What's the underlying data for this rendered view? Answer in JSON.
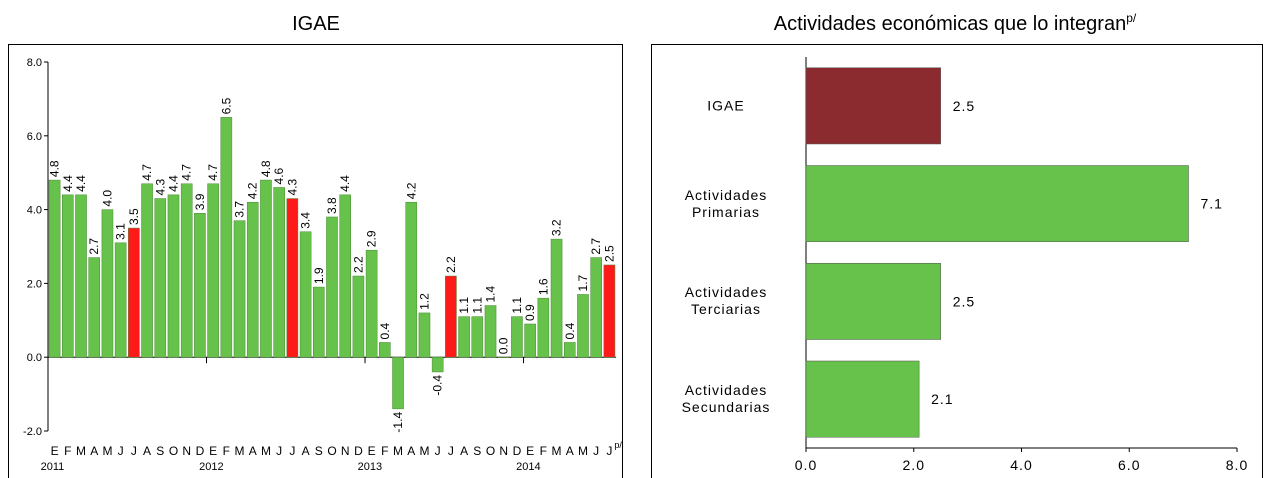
{
  "chart_data": [
    {
      "type": "bar",
      "title": "IGAE",
      "categories": [
        "E",
        "F",
        "M",
        "A",
        "M",
        "J",
        "J",
        "A",
        "S",
        "O",
        "N",
        "D",
        "E",
        "F",
        "M",
        "A",
        "M",
        "J",
        "J",
        "A",
        "S",
        "O",
        "N",
        "D",
        "E",
        "F",
        "M",
        "A",
        "M",
        "J",
        "J",
        "A",
        "S",
        "O",
        "N",
        "D",
        "E",
        "F",
        "M",
        "A",
        "M",
        "J",
        "J"
      ],
      "category_note": "p/",
      "years": [
        "2011",
        "2012",
        "2013",
        "2014"
      ],
      "values": [
        4.8,
        4.4,
        4.4,
        2.7,
        4.0,
        3.1,
        3.5,
        4.7,
        4.3,
        4.4,
        4.7,
        3.9,
        4.7,
        6.5,
        3.7,
        4.2,
        4.8,
        4.6,
        4.3,
        3.4,
        1.9,
        3.8,
        4.4,
        2.2,
        2.9,
        0.4,
        -1.4,
        4.2,
        1.2,
        -0.4,
        2.2,
        1.1,
        1.1,
        1.4,
        0.0,
        1.1,
        0.9,
        1.6,
        3.2,
        0.4,
        1.7,
        2.7,
        2.5
      ],
      "value_labels": [
        "4.8",
        "4.4",
        "4.4",
        "2.7",
        "4.0",
        "3.1",
        "3.5",
        "4.7",
        "4.3",
        "4.4",
        "4.7",
        "3.9",
        "4.7",
        "6.5",
        "3.7",
        "4.2",
        "4.8",
        "4.6",
        "4.3",
        "3.4",
        "1.9",
        "3.8",
        "4.4",
        "2.2",
        "2.9",
        "0.4",
        "-1.4",
        "4.2",
        "1.2",
        "-0.4",
        "2.2",
        "1.1",
        "1.1",
        "1.4",
        "0.0",
        "1.1",
        "0.9",
        "1.6",
        "3.2",
        "0.4",
        "1.7",
        "2.7",
        "2.5"
      ],
      "colors": [
        "#66c24a",
        "#66c24a",
        "#66c24a",
        "#66c24a",
        "#66c24a",
        "#66c24a",
        "#ff1a1a",
        "#66c24a",
        "#66c24a",
        "#66c24a",
        "#66c24a",
        "#66c24a",
        "#66c24a",
        "#66c24a",
        "#66c24a",
        "#66c24a",
        "#66c24a",
        "#66c24a",
        "#ff1a1a",
        "#66c24a",
        "#66c24a",
        "#66c24a",
        "#66c24a",
        "#66c24a",
        "#66c24a",
        "#66c24a",
        "#66c24a",
        "#66c24a",
        "#66c24a",
        "#66c24a",
        "#ff1a1a",
        "#66c24a",
        "#66c24a",
        "#66c24a",
        "#66c24a",
        "#66c24a",
        "#66c24a",
        "#66c24a",
        "#66c24a",
        "#66c24a",
        "#66c24a",
        "#66c24a",
        "#ff1a1a"
      ],
      "ylim": [
        -2,
        8
      ],
      "yticks": [
        {
          "value": -2,
          "label": "-2.0"
        },
        {
          "value": 0,
          "label": "0.0"
        },
        {
          "value": 2,
          "label": "2.0"
        },
        {
          "value": 4,
          "label": "4.0"
        },
        {
          "value": 6,
          "label": "6.0"
        },
        {
          "value": 8,
          "label": "8.0"
        }
      ],
      "grid": false
    },
    {
      "type": "bar",
      "horizontal": true,
      "title": "Actividades económicas que lo integran",
      "title_note": "p/",
      "categories": [
        "IGAE",
        "Actividades Primarias",
        "Actividades Terciarias",
        "Actividades Secundarias"
      ],
      "values": [
        2.5,
        7.1,
        2.5,
        2.1
      ],
      "colors": [
        "#8b2b30",
        "#66c24a",
        "#66c24a",
        "#66c24a"
      ],
      "xlim": [
        0,
        8
      ],
      "xticks": [
        {
          "value": 0,
          "label": "0.0"
        },
        {
          "value": 2,
          "label": "2.0"
        },
        {
          "value": 4,
          "label": "4.0"
        },
        {
          "value": 6,
          "label": "6.0"
        },
        {
          "value": 8,
          "label": "8.0"
        }
      ],
      "grid": false
    }
  ]
}
